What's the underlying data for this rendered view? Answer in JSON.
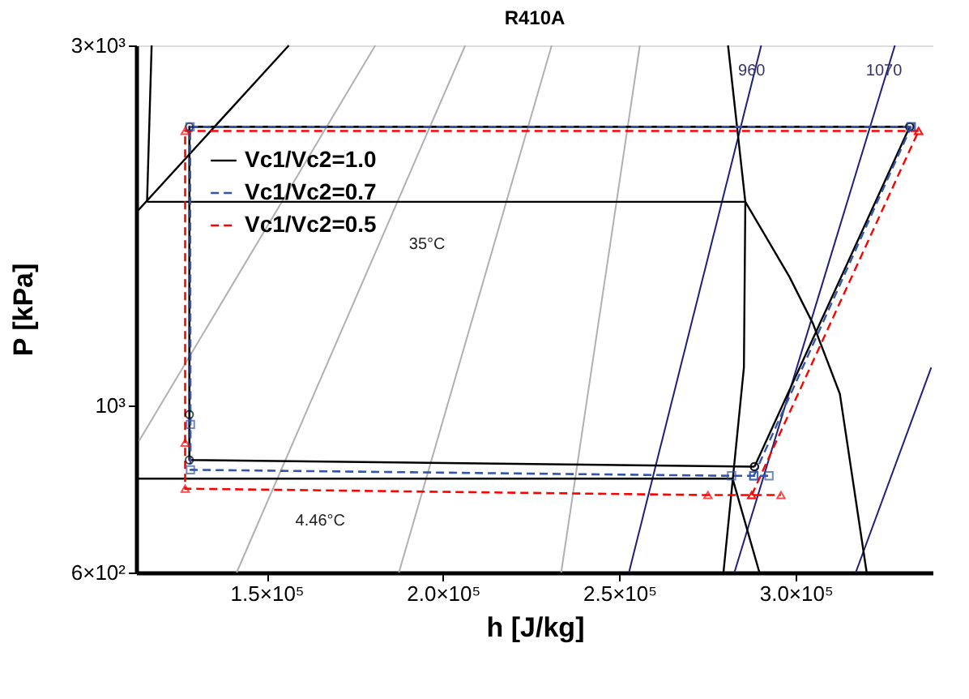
{
  "chart_data": {
    "type": "line",
    "title": "R410A",
    "xlabel": "h [J/kg]",
    "ylabel": "P [kPa]",
    "log": "y",
    "grid": false,
    "legend": "top left",
    "marker": "none",
    "line_style": "solid",
    "xlim": [
      113000,
      339000
    ],
    "ylim": [
      600,
      3000
    ],
    "xticks": [
      {
        "value": 150000,
        "label": "1.5×10⁵"
      },
      {
        "value": 200000,
        "label": "2.0×10⁵"
      },
      {
        "value": 250000,
        "label": "2.5×10⁵"
      },
      {
        "value": 300000,
        "label": "3.0×10⁵"
      }
    ],
    "yticks": [
      {
        "value": 600,
        "label": "6×10²"
      },
      {
        "value": 1000,
        "label": "10³"
      },
      {
        "value": 3000,
        "label": "3×10³"
      }
    ],
    "series": [
      {
        "color": "#b0b0b0",
        "x": [
          113800,
          180800
        ],
        "values": [
          896,
          3000
        ]
      },
      {
        "color": "#b0b0b0",
        "x": [
          141500,
          206300
        ],
        "values": [
          600,
          3000
        ]
      },
      {
        "color": "#b0b0b0",
        "x": [
          187500,
          230800
        ],
        "values": [
          600,
          3000
        ]
      },
      {
        "color": "#b0b0b0",
        "x": [
          233500,
          255800
        ],
        "values": [
          600,
          3000
        ]
      },
      {
        "color": "#1f1f7a",
        "x": [
          252700,
          290200
        ],
        "values": [
          600,
          3000
        ]
      },
      {
        "color": "#1f1f7a",
        "x": [
          282600,
          328100
        ],
        "values": [
          600,
          3000
        ]
      },
      {
        "color": "#1f1f7a",
        "x": [
          317000,
          338400
        ],
        "values": [
          600,
          1122
        ]
      },
      {
        "color": "#000000",
        "x": [
          113400,
          156300
        ],
        "values": [
          1809,
          3000
        ]
      },
      {
        "color": "#000000",
        "x": [
          116100,
          117400
        ],
        "values": [
          1861,
          3000
        ]
      },
      {
        "color": "#000000",
        "x": [
          116100,
          285700,
          298200,
          304900,
          312500,
          320100
        ],
        "values": [
          1861,
          1861,
          1480,
          1282,
          1035,
          600
        ]
      },
      {
        "color": "#000000",
        "x": [
          280800,
          285700,
          285300,
          279500
        ],
        "values": [
          3000,
          1861,
          1122,
          600
        ]
      },
      {
        "color": "#000000",
        "x": [
          113400,
          282100,
          289700
        ],
        "values": [
          799,
          799,
          600
        ]
      },
      {
        "color": "#000000",
        "marker": "circle",
        "line_style": "solid",
        "x": [
          288300,
          332300
        ],
        "values": [
          829,
          2340
        ]
      },
      {
        "color": "#3355aa",
        "marker": "square",
        "line_style": "dashed",
        "x": [
          288100,
          332700
        ],
        "values": [
          806,
          2340
        ]
      },
      {
        "color": "#ff0000",
        "marker": "triangle",
        "line_style": "dashed",
        "x": [
          287500,
          334800
        ],
        "values": [
          760,
          2310
        ]
      },
      {
        "name": "Vc1/Vc2=1.0",
        "color": "#000000",
        "marker": "circle",
        "line_style": "solid",
        "x": [
          332300,
          128100,
          128100,
          128100,
          288300
        ],
        "values": [
          2340,
          2340,
          972,
          846,
          829
        ]
      },
      {
        "name": "Vc1/Vc2=0.7",
        "color": "#3355aa",
        "marker": "square",
        "line_style": "dashed",
        "x": [
          332700,
          128300,
          128400,
          128400,
          281800,
          288100,
          292400
        ],
        "values": [
          2340,
          2340,
          943,
          821,
          806,
          806,
          806
        ]
      },
      {
        "name": "Vc1/Vc2=0.5",
        "color": "#ff0000",
        "marker": "triangle",
        "line_style": "dashed",
        "x": [
          334800,
          126900,
          126900,
          126900,
          275100,
          287500,
          295800
        ],
        "values": [
          2310,
          2310,
          892,
          775,
          760,
          760,
          760
        ]
      }
    ],
    "annotations": [
      {
        "text": "35°C",
        "x": 195500,
        "y": 1861
      },
      {
        "text": "4.46°C",
        "x": 165200,
        "y": 799
      },
      {
        "text": "960",
        "x": 287500,
        "y": 2780
      },
      {
        "text": "1070",
        "x": 325000,
        "y": 2780
      }
    ]
  }
}
